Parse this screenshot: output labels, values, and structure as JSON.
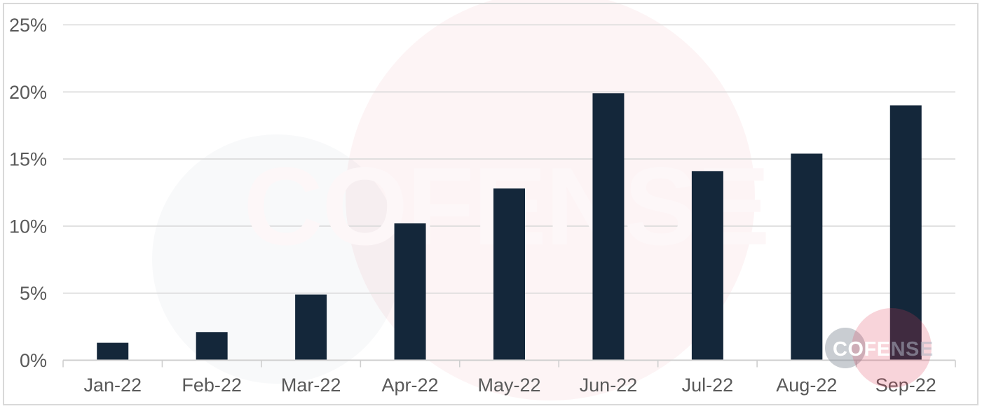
{
  "chart_data": {
    "type": "bar",
    "title": "",
    "categories": [
      "Jan-22",
      "Feb-22",
      "Mar-22",
      "Apr-22",
      "May-22",
      "Jun-22",
      "Jul-22",
      "Aug-22",
      "Sep-22"
    ],
    "values": [
      1.3,
      2.1,
      4.9,
      10.2,
      12.8,
      19.9,
      14.1,
      15.4,
      19.0
    ],
    "unit": "%",
    "xlabel": "",
    "ylabel": "",
    "ylim": [
      0,
      25
    ],
    "ytick_values": [
      0,
      5,
      10,
      15,
      20,
      25
    ],
    "ytick_labels": [
      "0%",
      "5%",
      "10%",
      "15%",
      "20%",
      "25%"
    ],
    "grid": true,
    "legend": null,
    "bar_color": "#14273A",
    "gridline_color": "#D9D9D9",
    "axis_line_color": "#CFCFCF",
    "axis_label_color": "#595959",
    "frame_color": "#D9D9D9"
  },
  "watermark": {
    "text": "COFENSE",
    "text_color": "#FDF7F8",
    "pink_wash_color": "rgba(224,60,85,0.06)",
    "gray_wash_color": "rgba(120,130,150,0.05)"
  },
  "logo": {
    "text_strong": "COFE",
    "text_muted": "NSE",
    "strong_color": "#FFFFFF",
    "muted_color": "rgba(173,181,194,0.55)",
    "gray_circle_color": "rgba(140,148,160,0.47)",
    "red_circle_color": "rgba(224,60,85,0.22)"
  }
}
